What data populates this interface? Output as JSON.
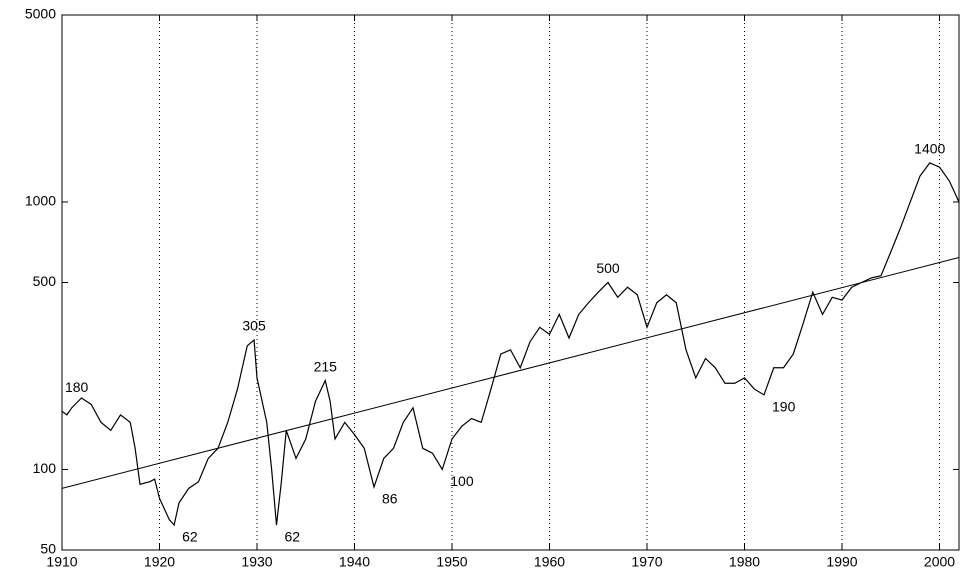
{
  "chart_data": {
    "type": "line",
    "log_y": true,
    "grid_x": true,
    "color": "#000000",
    "xlim": [
      1910,
      2002
    ],
    "ylim": [
      50,
      5000
    ],
    "xticks": [
      1910,
      1920,
      1930,
      1940,
      1950,
      1960,
      1970,
      1980,
      1990,
      2000
    ],
    "yticks": [
      50,
      100,
      500,
      1000,
      5000
    ],
    "x": [
      1910,
      1910.5,
      1911,
      1912,
      1913,
      1914,
      1915,
      1916,
      1917,
      1917.5,
      1918,
      1919,
      1919.5,
      1920,
      1921,
      1921.5,
      1922,
      1923,
      1924,
      1925,
      1926,
      1927,
      1928,
      1929,
      1929.7,
      1930,
      1931,
      1931.5,
      1932,
      1932.5,
      1933,
      1934,
      1935,
      1936,
      1937,
      1937.5,
      1938,
      1939,
      1940,
      1941,
      1942,
      1943,
      1944,
      1945,
      1946,
      1947,
      1948,
      1949,
      1950,
      1951,
      1952,
      1953,
      1954,
      1955,
      1956,
      1957,
      1958,
      1959,
      1960,
      1961,
      1962,
      1963,
      1964,
      1965,
      1966,
      1967,
      1968,
      1969,
      1970,
      1971,
      1972,
      1973,
      1974,
      1975,
      1976,
      1977,
      1978,
      1979,
      1980,
      1981,
      1982,
      1983,
      1984,
      1985,
      1986,
      1987,
      1988,
      1989,
      1990,
      1991,
      1992,
      1993,
      1994,
      1995,
      1996,
      1997,
      1998,
      1999,
      2000,
      2001,
      2002
    ],
    "values": [
      165,
      160,
      170,
      185,
      175,
      150,
      140,
      160,
      150,
      120,
      88,
      90,
      92,
      78,
      65,
      62,
      75,
      85,
      90,
      110,
      120,
      150,
      200,
      290,
      305,
      220,
      150,
      100,
      62,
      90,
      140,
      110,
      130,
      180,
      215,
      180,
      130,
      150,
      135,
      120,
      86,
      110,
      120,
      150,
      170,
      120,
      115,
      100,
      130,
      145,
      155,
      150,
      200,
      270,
      280,
      240,
      300,
      340,
      320,
      380,
      310,
      380,
      420,
      460,
      500,
      440,
      480,
      450,
      340,
      420,
      450,
      420,
      280,
      220,
      260,
      240,
      210,
      210,
      220,
      200,
      190,
      240,
      240,
      270,
      350,
      460,
      380,
      440,
      430,
      480,
      500,
      520,
      530,
      650,
      800,
      1000,
      1250,
      1400,
      1350,
      1200,
      1000
    ],
    "trend": {
      "x": [
        1910,
        2002
      ],
      "values": [
        85,
        620
      ]
    },
    "annotations": [
      {
        "label": "180",
        "x": 1911.5,
        "y": 180,
        "position": "above"
      },
      {
        "label": "62",
        "x": 1921.5,
        "y": 62,
        "position": "below"
      },
      {
        "label": "305",
        "x": 1929.7,
        "y": 305,
        "position": "above"
      },
      {
        "label": "62",
        "x": 1932,
        "y": 62,
        "position": "below"
      },
      {
        "label": "215",
        "x": 1937,
        "y": 215,
        "position": "above"
      },
      {
        "label": "86",
        "x": 1942,
        "y": 86,
        "position": "below"
      },
      {
        "label": "100",
        "x": 1949,
        "y": 100,
        "position": "below"
      },
      {
        "label": "500",
        "x": 1966,
        "y": 500,
        "position": "above"
      },
      {
        "label": "190",
        "x": 1982,
        "y": 190,
        "position": "below"
      },
      {
        "label": "1400",
        "x": 1999,
        "y": 1400,
        "position": "above"
      }
    ]
  }
}
